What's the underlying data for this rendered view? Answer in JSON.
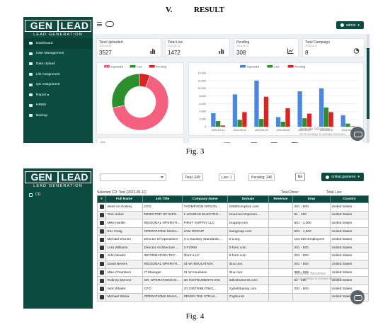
{
  "section": {
    "number": "V.",
    "title": "RESULT"
  },
  "fig3": {
    "caption": "Fig. 3",
    "brand": {
      "left": "GEN",
      "right": "LEAD",
      "tagline": "LEAD GENERATION"
    },
    "user_label": "admin",
    "menu": [
      {
        "label": "Dashboard",
        "active": true
      },
      {
        "label": "User Management"
      },
      {
        "label": "Data Upload"
      },
      {
        "label": "L/D Assignment"
      },
      {
        "label": "QC Assignment"
      },
      {
        "label": "Report",
        "badge": true
      },
      {
        "label": "HRMS"
      },
      {
        "label": "Backup"
      }
    ],
    "stats": [
      {
        "title": "Total Uploaded",
        "date": "2023-05-11",
        "value": "3527",
        "icon": "bar-chart-icon"
      },
      {
        "title": "Total Live",
        "date": "2023-05-11",
        "value": "1472",
        "icon": "bar-chart-icon"
      },
      {
        "title": "Pending",
        "date": "2023-05-11",
        "value": "308",
        "icon": "area-chart-icon"
      },
      {
        "title": "Total Campaign",
        "date": "2023-05-11",
        "value": "8",
        "icon": "pie-chart-icon"
      }
    ],
    "watermark": {
      "line1": "Activate Windows",
      "line2": "Go to Settings to activate Windows."
    },
    "cut_label": "### "
  },
  "chart_data": [
    {
      "type": "pie",
      "donut": true,
      "legend": [
        "Uploaded",
        "Live",
        "Pending"
      ],
      "colors": [
        "#f4607f",
        "#2a8f2c",
        "#dd2222"
      ],
      "values": [
        66,
        28,
        6
      ],
      "legend_position": "top"
    },
    {
      "type": "bar",
      "categories": [
        "2023-05-11",
        "2023-05-10",
        "2023-05-09",
        "2023-05-08",
        "2023-05-07",
        "2023-05-06",
        "2023-05-05"
      ],
      "series": [
        {
          "name": "Uploaded",
          "color": "#4a87e0",
          "values": [
            3527,
            8400,
            12000,
            2500,
            9200,
            10000,
            3000
          ]
        },
        {
          "name": "Live",
          "color": "#2a8f2c",
          "values": [
            1472,
            1800,
            2000,
            1300,
            2200,
            5000,
            800
          ]
        },
        {
          "name": "Pending",
          "color": "#dd2222",
          "values": [
            308,
            3800,
            7800,
            4800,
            3400,
            3800,
            100
          ]
        }
      ],
      "ylim": [
        0,
        14000
      ],
      "yticks": [
        "0",
        "2,000",
        "4,000",
        "6,000",
        "8,000",
        "10,000",
        "12,000",
        "14,000"
      ],
      "grid": true,
      "legend_position": "top",
      "lower_legend": [
        {
          "name": "Uploaded",
          "color": "#4a87e0"
        },
        {
          "name": "Live",
          "color": "#2a8f2c"
        },
        {
          "name": "Fres",
          "color": "#dd2222"
        },
        {
          "name": "qualified",
          "color": "#7a2c8a"
        }
      ]
    }
  ],
  "fig4": {
    "caption": "Fig. 4",
    "brand": {
      "left": "GEN",
      "right": "LEAD",
      "tagline": "LEAD GENERATION"
    },
    "user_label": "omkar.gawaree",
    "side_item": "CD",
    "total_pill": "Total: 249",
    "live_pill": "Live: 1",
    "pending_pill": "Pending: 246",
    "go_label": "Go",
    "selected": "Selected CD: Test (2023-05-11)",
    "total_done": "Total Done:",
    "total_live": "Total Live:",
    "columns": [
      "#",
      "Full Name",
      "Job Title",
      "Company Name",
      "Domain",
      "Revenue",
      "Emp",
      "Country"
    ],
    "rows": [
      [
        "steve mccloskey",
        "CFO",
        "THOMPSON ORGAN...",
        "1800thompson.com",
        "",
        "201 - 500",
        "United States"
      ],
      [
        "Tom Huber",
        "DIRECTOR OF INFO...",
        "1-SOURCE ELECTRO...",
        "1sourcecomponen...",
        "",
        "51 - 200",
        "United States"
      ],
      [
        "Mike Hardin",
        "REGIONAL OPERATI...",
        "FIRST SUPPLY LLC",
        "1supply.com",
        "",
        "501 - 1,000",
        "United States"
      ],
      [
        "Eric Craig",
        "OPERATIONS MANA...",
        "2AM GROUP",
        "2amgroup.com",
        "",
        "501 - 1,000",
        "United States"
      ],
      [
        "Michael Drumm",
        "Director Of Operations",
        "3-A Sanitary Standards,...",
        "3-a.org",
        "",
        "101-500 Employees",
        "United States"
      ],
      [
        "Lora Williams",
        "Director Architecture ...",
        "3-FORM",
        "3-form.com",
        "",
        "201 - 500",
        "United States"
      ],
      [
        "John Meeks",
        "INFORMATION TEC...",
        "3form LLC",
        "3-form.com",
        "",
        "201 - 500",
        "United States"
      ],
      [
        "David Bevers",
        "REGIONAL OPERATI...",
        "31-W INSULATION",
        "31w.com",
        "",
        "201 - 500",
        "United States"
      ],
      [
        "Mike Chambers",
        "IT Manager",
        "31 W Insulation",
        "31w.com",
        "",
        "300 - 999",
        "United States"
      ],
      [
        "Rodney Monroe",
        "SR. OPERATIONS M...",
        "3D INSTRUMENTS INC",
        "3dinstruments.com",
        "",
        "51 - 200",
        "United States"
      ],
      [
        "Nick Whaler",
        "CFO",
        "7G DISTRIBUTING,...",
        "7gdistributing.com",
        "",
        "201 - 500",
        "United States"
      ],
      [
        "Michael Sticka",
        "OPERATIONS MANA...",
        "SEVEN THE STEAK...",
        "7ngrla.net",
        "",
        "",
        "United States"
      ]
    ],
    "watermark": {
      "line1": "Activate Windows",
      "line2": "Go to Settings to activate Windows."
    }
  }
}
